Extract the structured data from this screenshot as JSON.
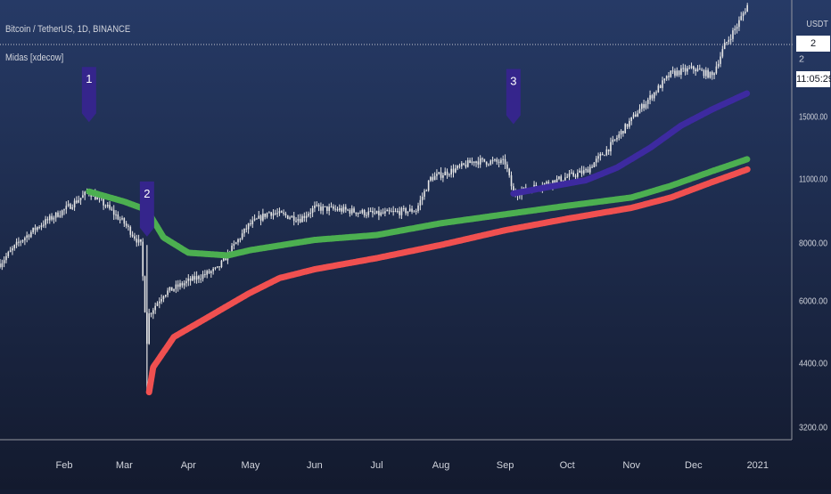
{
  "header": {
    "symbol_line": "Bitcoin / TetherUS, 1D, BINANCE",
    "indicator_line": "Midas [xdecow]",
    "currency": "USDT",
    "last_price": "2",
    "countdown": "11:05:29"
  },
  "colors": {
    "background_top": "#263a66",
    "background_bottom": "#131a2e",
    "candle": "#e6e6e6",
    "green_line": "#4caf50",
    "red_line": "#f05050",
    "blue_line": "#3d2aa0",
    "marker": "#35258c",
    "axis_text": "#d1d4dc"
  },
  "chart_data": {
    "type": "candlestick",
    "title": "Bitcoin / TetherUS, 1D, BINANCE",
    "xlabel": "",
    "ylabel": "",
    "x_ticks": [
      "Feb",
      "Mar",
      "Apr",
      "May",
      "Jun",
      "Jul",
      "Aug",
      "Sep",
      "Oct",
      "Nov",
      "Dec",
      "2021"
    ],
    "y_ticks": [
      "3200.00",
      "4400.00",
      "6000.00",
      "8000.00",
      "11000.00",
      "15000.00",
      "2"
    ],
    "y_tick_values": [
      3200,
      4400,
      6000,
      8000,
      11000,
      15000,
      20000
    ],
    "ylim": [
      3000,
      26000
    ],
    "xlim": [
      "2020-01-01",
      "2021-01-14"
    ],
    "scale": "log",
    "grid": false,
    "close_series": {
      "name": "",
      "points": [
        [
          "2020-01-01",
          7200
        ],
        [
          "2020-01-10",
          8000
        ],
        [
          "2020-01-20",
          8700
        ],
        [
          "2020-02-01",
          9400
        ],
        [
          "2020-02-13",
          10300
        ],
        [
          "2020-02-20",
          9700
        ],
        [
          "2020-03-01",
          8800
        ],
        [
          "2020-03-09",
          7900
        ],
        [
          "2020-03-12",
          4900
        ],
        [
          "2020-03-13",
          5600
        ],
        [
          "2020-03-20",
          6200
        ],
        [
          "2020-04-01",
          6600
        ],
        [
          "2020-04-15",
          7000
        ],
        [
          "2020-04-30",
          8700
        ],
        [
          "2020-05-10",
          9300
        ],
        [
          "2020-05-25",
          9000
        ],
        [
          "2020-06-01",
          9500
        ],
        [
          "2020-06-15",
          9400
        ],
        [
          "2020-07-01",
          9200
        ],
        [
          "2020-07-20",
          9400
        ],
        [
          "2020-07-27",
          11000
        ],
        [
          "2020-08-10",
          11600
        ],
        [
          "2020-08-17",
          12000
        ],
        [
          "2020-09-01",
          11900
        ],
        [
          "2020-09-05",
          10200
        ],
        [
          "2020-09-20",
          10700
        ],
        [
          "2020-10-10",
          11400
        ],
        [
          "2020-10-21",
          12800
        ],
        [
          "2020-11-05",
          15500
        ],
        [
          "2020-11-20",
          18500
        ],
        [
          "2020-12-01",
          19000
        ],
        [
          "2020-12-10",
          18300
        ],
        [
          "2020-12-16",
          21300
        ],
        [
          "2020-12-22",
          23500
        ],
        [
          "2020-12-27",
          26000
        ]
      ]
    },
    "series": [
      {
        "name": "",
        "color": "#4caf50",
        "points": [
          [
            "2020-02-13",
            10300
          ],
          [
            "2020-03-01",
            9800
          ],
          [
            "2020-03-12",
            9400
          ],
          [
            "2020-03-20",
            8200
          ],
          [
            "2020-04-01",
            7600
          ],
          [
            "2020-04-20",
            7500
          ],
          [
            "2020-05-01",
            7700
          ],
          [
            "2020-06-01",
            8100
          ],
          [
            "2020-07-01",
            8300
          ],
          [
            "2020-08-01",
            8800
          ],
          [
            "2020-09-01",
            9200
          ],
          [
            "2020-10-01",
            9600
          ],
          [
            "2020-11-01",
            10000
          ],
          [
            "2020-11-20",
            10600
          ],
          [
            "2020-12-10",
            11400
          ],
          [
            "2020-12-27",
            12100
          ]
        ]
      },
      {
        "name": "",
        "color": "#f05050",
        "points": [
          [
            "2020-03-13",
            3800
          ],
          [
            "2020-03-15",
            4300
          ],
          [
            "2020-03-25",
            5000
          ],
          [
            "2020-04-10",
            5500
          ],
          [
            "2020-04-30",
            6200
          ],
          [
            "2020-05-15",
            6700
          ],
          [
            "2020-06-01",
            7000
          ],
          [
            "2020-07-01",
            7400
          ],
          [
            "2020-08-01",
            7900
          ],
          [
            "2020-09-01",
            8500
          ],
          [
            "2020-10-01",
            9000
          ],
          [
            "2020-11-01",
            9500
          ],
          [
            "2020-11-20",
            10000
          ],
          [
            "2020-12-10",
            10800
          ],
          [
            "2020-12-27",
            11500
          ]
        ]
      },
      {
        "name": "",
        "color": "#3d2aa0",
        "points": [
          [
            "2020-09-05",
            10200
          ],
          [
            "2020-09-20",
            10500
          ],
          [
            "2020-10-10",
            10900
          ],
          [
            "2020-10-25",
            11600
          ],
          [
            "2020-11-10",
            12800
          ],
          [
            "2020-11-25",
            14300
          ],
          [
            "2020-12-10",
            15500
          ],
          [
            "2020-12-27",
            16800
          ]
        ]
      }
    ],
    "annotations": [
      {
        "label": "1",
        "date": "2020-02-13",
        "price": 10300
      },
      {
        "label": "2",
        "date": "2020-03-12",
        "price": 9400
      },
      {
        "label": "3",
        "date": "2020-09-05",
        "price": 10200
      }
    ]
  }
}
